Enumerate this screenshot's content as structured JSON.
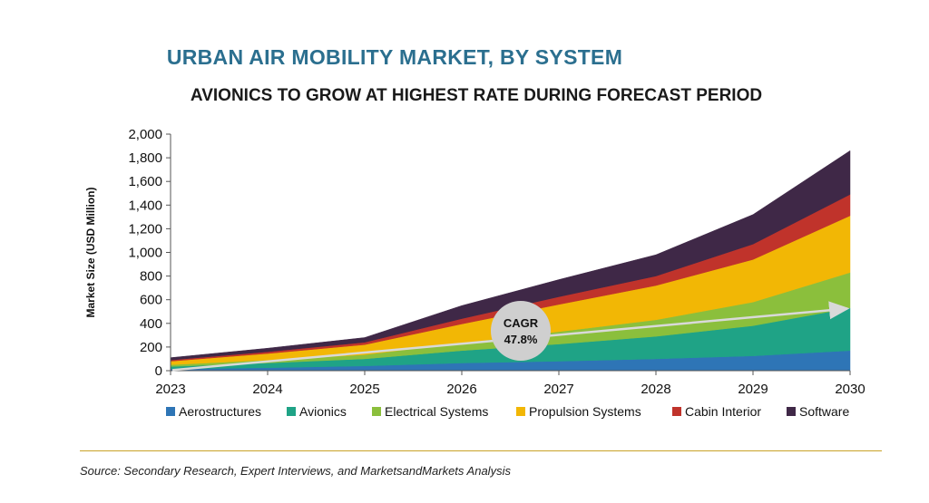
{
  "title": "URBAN AIR MOBILITY MARKET, BY SYSTEM",
  "subtitle": "AVIONICS TO GROW AT HIGHEST RATE DURING FORECAST PERIOD",
  "source": "Source: Secondary Research, Expert Interviews, and MarketsandMarkets Analysis",
  "cagr": {
    "label": "CAGR",
    "value": "47.8%"
  },
  "chart_data": {
    "type": "area",
    "stacked": true,
    "x": [
      "2023",
      "2024",
      "2025",
      "2026",
      "2027",
      "2028",
      "2029",
      "2030"
    ],
    "ylabel": "Market Size (USD Million)",
    "ylim": [
      0,
      2000
    ],
    "yticks": [
      "0",
      "200",
      "400",
      "600",
      "800",
      "1,000",
      "1,200",
      "1,400",
      "1,600",
      "1,800",
      "2,000"
    ],
    "ytick_values": [
      0,
      200,
      400,
      600,
      800,
      1000,
      1200,
      1400,
      1600,
      1800,
      2000
    ],
    "legend_position": "bottom",
    "series": [
      {
        "name": "Aerostructures",
        "color": "#2e75b6",
        "values": [
          15,
          25,
          40,
          65,
          80,
          100,
          125,
          170
        ]
      },
      {
        "name": "Avionics",
        "color": "#1fa386",
        "values": [
          20,
          40,
          60,
          105,
          145,
          190,
          255,
          360
        ]
      },
      {
        "name": "Electrical Systems",
        "color": "#8bbf3c",
        "values": [
          15,
          25,
          35,
          65,
          105,
          140,
          200,
          300
        ]
      },
      {
        "name": "Propulsion Systems",
        "color": "#f2b705",
        "values": [
          30,
          55,
          85,
          160,
          230,
          290,
          360,
          480
        ]
      },
      {
        "name": "Cabin Interior",
        "color": "#c0332b",
        "values": [
          10,
          15,
          20,
          45,
          65,
          80,
          130,
          180
        ]
      },
      {
        "name": "Software",
        "color": "#3f2847",
        "values": [
          20,
          30,
          40,
          110,
          145,
          180,
          250,
          370
        ]
      }
    ]
  }
}
